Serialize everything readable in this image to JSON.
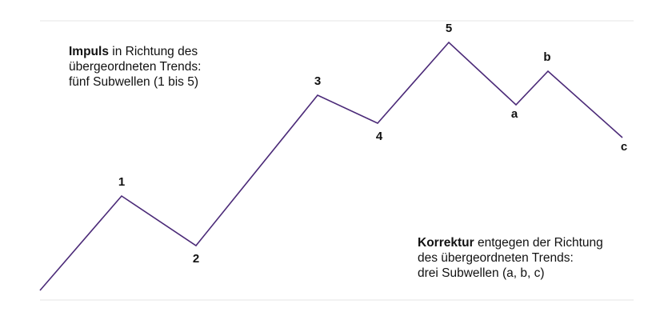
{
  "wave_labels": [
    "1",
    "2",
    "3",
    "4",
    "5",
    "a",
    "b",
    "c"
  ],
  "impulse_note": {
    "bold": "Impuls",
    "line1_rest": " in Richtung des",
    "line2": "übergeordneten Trends:",
    "line3": "fünf Subwellen (1 bis 5)"
  },
  "correction_note": {
    "bold": "Korrektur",
    "line1_rest": " entgegen der Richtung",
    "line2": "des übergeordneten Trends:",
    "line3": "drei Subwellen (a, b, c)"
  },
  "colors": {
    "wave_line": "#4b2a78",
    "frame_line": "#e6e6e6",
    "text": "#111111"
  }
}
